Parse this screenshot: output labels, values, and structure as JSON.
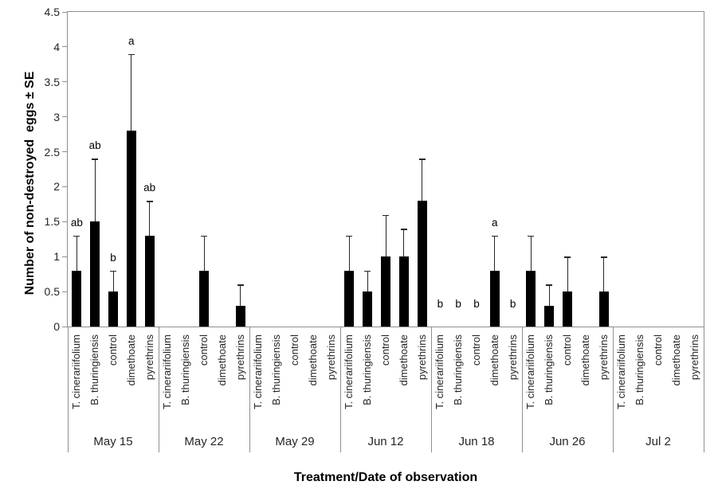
{
  "chart_data": {
    "type": "bar",
    "title": "",
    "ylabel": "Number of non-destroyed  eggs ± SE",
    "xlabel": "Treatment/Date of observation",
    "ylim": [
      0,
      4.5
    ],
    "ytick_step": 0.5,
    "grid": false,
    "legend": "none",
    "bar_color": "#000000",
    "error_bar_color": "#262626",
    "axis_color": "#8f8f8f",
    "treatments": [
      "T. cinerariifolium",
      "B. thuringiensis",
      "control",
      "dimethoate",
      "pyrethrins"
    ],
    "groups": [
      {
        "date": "May 15",
        "values": [
          0.8,
          1.5,
          0.5,
          2.8,
          1.3
        ],
        "errors_upper": [
          0.5,
          0.9,
          0.3,
          1.1,
          0.5
        ],
        "letters": [
          "ab",
          "ab",
          "b",
          "a",
          "ab"
        ]
      },
      {
        "date": "May 22",
        "values": [
          0,
          0,
          0.8,
          0,
          0.3
        ],
        "errors_upper": [
          0,
          0,
          0.5,
          0,
          0.3
        ],
        "letters": [
          "",
          "",
          "",
          "",
          ""
        ]
      },
      {
        "date": "May 29",
        "values": [
          0,
          0,
          0,
          0,
          0
        ],
        "errors_upper": [
          0,
          0,
          0,
          0,
          0
        ],
        "letters": [
          "",
          "",
          "",
          "",
          ""
        ]
      },
      {
        "date": "Jun 12",
        "values": [
          0.8,
          0.5,
          1.0,
          1.0,
          1.8
        ],
        "errors_upper": [
          0.5,
          0.3,
          0.6,
          0.4,
          0.6
        ],
        "letters": [
          "",
          "",
          "",
          "",
          ""
        ]
      },
      {
        "date": "Jun 18",
        "values": [
          0,
          0,
          0,
          0.8,
          0
        ],
        "errors_upper": [
          0,
          0,
          0,
          0.5,
          0
        ],
        "letters": [
          "b",
          "b",
          "b",
          "a",
          "b"
        ]
      },
      {
        "date": "Jun 26",
        "values": [
          0.8,
          0.3,
          0.5,
          0,
          0.5
        ],
        "errors_upper": [
          0.5,
          0.3,
          0.5,
          0,
          0.5
        ],
        "letters": [
          "",
          "",
          "",
          "",
          ""
        ]
      },
      {
        "date": "Jul 2",
        "values": [
          0,
          0,
          0,
          0,
          0
        ],
        "errors_upper": [
          0,
          0,
          0,
          0,
          0
        ],
        "letters": [
          "",
          "",
          "",
          "",
          ""
        ]
      }
    ]
  }
}
